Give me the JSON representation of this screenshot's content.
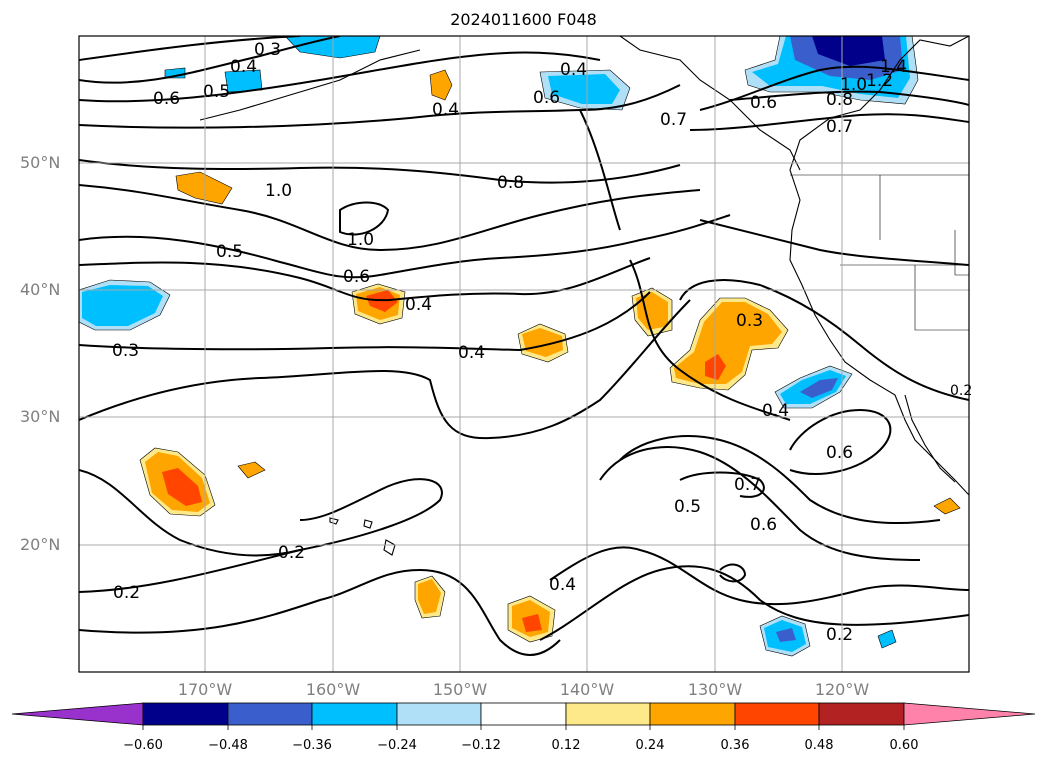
{
  "title": "2024011600 F048",
  "map": {
    "lat_labels": [
      "50°N",
      "40°N",
      "30°N",
      "20°N"
    ],
    "lon_labels": [
      "170°W",
      "160°W",
      "150°W",
      "140°W",
      "130°W",
      "120°W"
    ],
    "contour_labels": [
      "0.3",
      "0.4",
      "0.5",
      "0.6",
      "0.4",
      "0.4",
      "0.6",
      "0.7",
      "0.6",
      "1.4",
      "1.2",
      "1.0",
      "0.8",
      "0.7",
      "1.0",
      "0.8",
      "1.0",
      "0.5",
      "0.6",
      "0.4",
      "0.4",
      "0.3",
      "0.3",
      "0.4",
      "0.6",
      "0.7",
      "0.5",
      "0.6",
      "0.2",
      "0.2",
      "0.4",
      "0.2",
      "0.2"
    ],
    "shading_colors": {
      "pos_012": "#fde98a",
      "pos_024": "#ffa500",
      "pos_036": "#ff4500",
      "neg_024": "#00bfff",
      "neg_012": "#b0e0f8",
      "neg_036": "#3a5fcd",
      "neg_048": "#00008b"
    }
  },
  "colorbar": {
    "ticks": [
      "−0.60",
      "−0.48",
      "−0.36",
      "−0.24",
      "−0.12",
      "0.12",
      "0.24",
      "0.36",
      "0.48",
      "0.60"
    ],
    "colors": [
      "#9932cc",
      "#00008b",
      "#3a5fcd",
      "#00bfff",
      "#b0e0f8",
      "#ffffff",
      "#fde98a",
      "#ffa500",
      "#ff4500",
      "#b22222",
      "#ff82ab"
    ]
  }
}
